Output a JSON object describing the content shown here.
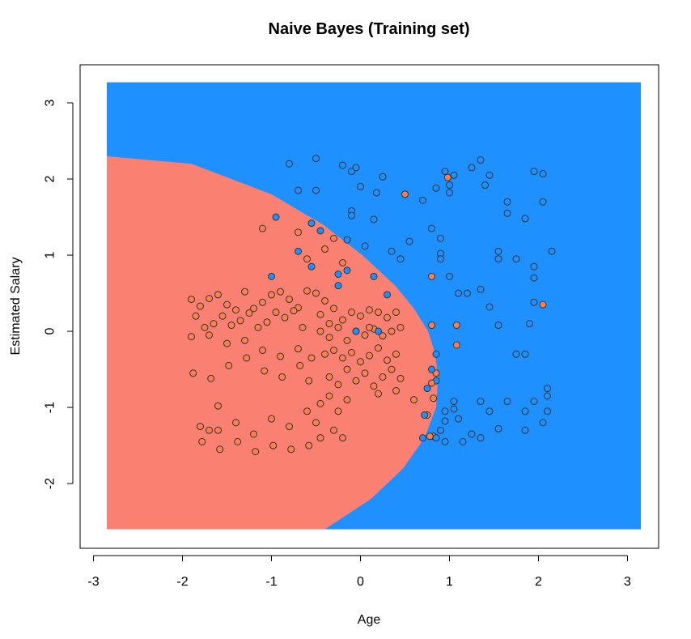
{
  "chart_data": {
    "type": "scatter",
    "title": "Naive Bayes (Training set)",
    "xlabel": "Age",
    "ylabel": "Estimated Salary",
    "xlim": [
      -3.15,
      3.35
    ],
    "ylim": [
      -2.85,
      3.5
    ],
    "grid_extent": {
      "x": [
        -2.85,
        3.15
      ],
      "y": [
        -2.6,
        3.27
      ]
    },
    "x_ticks": [
      -3,
      -2,
      -1,
      0,
      1,
      2,
      3
    ],
    "y_ticks": [
      -2,
      -1,
      0,
      1,
      2,
      3
    ],
    "grid": false,
    "legend": "none",
    "colors": {
      "region_0": "#FA8072",
      "region_1": "#1E90FF",
      "point_0": "#FF7F50",
      "point_1": "#1E90FF",
      "point_outline": "#333333"
    },
    "boundary": {
      "y": [
        -2.6,
        -2.2,
        -1.8,
        -1.4,
        -1.0,
        -0.6,
        -0.3,
        0.0,
        0.3,
        0.6,
        1.0,
        1.4,
        1.8,
        2.2,
        2.3
      ],
      "x": [
        -0.4,
        0.12,
        0.48,
        0.72,
        0.85,
        0.87,
        0.84,
        0.76,
        0.6,
        0.39,
        0.02,
        -0.42,
        -1.0,
        -1.9,
        -2.85
      ]
    },
    "series": [
      {
        "class": 0,
        "points": [
          [
            -1.9,
            0.42
          ],
          [
            -1.8,
            0.33
          ],
          [
            -1.7,
            0.43
          ],
          [
            -1.6,
            0.48
          ],
          [
            -1.5,
            0.35
          ],
          [
            -1.4,
            0.28
          ],
          [
            -1.3,
            0.52
          ],
          [
            -1.2,
            0.3
          ],
          [
            -1.1,
            0.38
          ],
          [
            -1.0,
            0.48
          ],
          [
            -0.9,
            0.52
          ],
          [
            -0.8,
            0.42
          ],
          [
            -0.7,
            0.31
          ],
          [
            -0.6,
            0.53
          ],
          [
            -1.85,
            0.2
          ],
          [
            -1.75,
            0.05
          ],
          [
            -1.65,
            0.1
          ],
          [
            -1.55,
            0.2
          ],
          [
            -1.45,
            0.08
          ],
          [
            -1.35,
            0.14
          ],
          [
            -1.25,
            0.24
          ],
          [
            -1.15,
            0.05
          ],
          [
            -1.05,
            0.12
          ],
          [
            -0.95,
            0.25
          ],
          [
            -0.85,
            0.18
          ],
          [
            -0.75,
            0.27
          ],
          [
            -0.65,
            0.05
          ],
          [
            -1.9,
            -0.07
          ],
          [
            -1.7,
            -0.05
          ],
          [
            -1.5,
            -0.16
          ],
          [
            -1.3,
            -0.12
          ],
          [
            -1.1,
            -0.25
          ],
          [
            -0.9,
            -0.33
          ],
          [
            -0.7,
            -0.23
          ],
          [
            -0.55,
            -0.35
          ],
          [
            -1.88,
            -0.55
          ],
          [
            -1.68,
            -0.62
          ],
          [
            -1.48,
            -0.45
          ],
          [
            -1.28,
            -0.35
          ],
          [
            -1.08,
            -0.52
          ],
          [
            -0.88,
            -0.6
          ],
          [
            -0.68,
            -0.45
          ],
          [
            -0.58,
            -0.65
          ],
          [
            -1.8,
            -1.25
          ],
          [
            -1.6,
            -1.3
          ],
          [
            -1.4,
            -1.2
          ],
          [
            -1.2,
            -1.35
          ],
          [
            -1.0,
            -1.15
          ],
          [
            -0.8,
            -1.25
          ],
          [
            -0.6,
            -1.05
          ],
          [
            -0.5,
            -1.2
          ],
          [
            -1.78,
            -1.45
          ],
          [
            -1.58,
            -1.55
          ],
          [
            -1.38,
            -1.45
          ],
          [
            -1.18,
            -1.58
          ],
          [
            -0.98,
            -1.5
          ],
          [
            -0.78,
            -1.55
          ],
          [
            -0.58,
            -1.5
          ],
          [
            -0.45,
            -1.4
          ],
          [
            -1.1,
            1.35
          ],
          [
            -0.7,
            1.3
          ],
          [
            -0.3,
            1.22
          ],
          [
            -0.4,
            1.08
          ],
          [
            -0.6,
            0.95
          ],
          [
            -0.2,
            0.9
          ],
          [
            -0.4,
            0.4
          ],
          [
            -0.3,
            0.3
          ],
          [
            -0.2,
            0.15
          ],
          [
            -0.1,
            0.25
          ],
          [
            0.0,
            0.2
          ],
          [
            0.1,
            0.28
          ],
          [
            0.2,
            0.25
          ],
          [
            0.3,
            0.18
          ],
          [
            0.4,
            0.25
          ],
          [
            -0.45,
            0.0
          ],
          [
            -0.35,
            -0.08
          ],
          [
            -0.25,
            0.05
          ],
          [
            -0.15,
            -0.12
          ],
          [
            -0.05,
            0.0
          ],
          [
            0.05,
            -0.05
          ],
          [
            0.15,
            0.03
          ],
          [
            0.25,
            -0.06
          ],
          [
            0.35,
            0.0
          ],
          [
            0.45,
            0.05
          ],
          [
            -0.4,
            -0.3
          ],
          [
            -0.3,
            -0.25
          ],
          [
            -0.2,
            -0.35
          ],
          [
            -0.1,
            -0.28
          ],
          [
            0.0,
            -0.4
          ],
          [
            0.1,
            -0.32
          ],
          [
            0.2,
            -0.22
          ],
          [
            0.3,
            -0.38
          ],
          [
            0.4,
            -0.3
          ],
          [
            -0.35,
            -0.6
          ],
          [
            -0.25,
            -0.7
          ],
          [
            -0.15,
            -0.5
          ],
          [
            -0.05,
            -0.65
          ],
          [
            0.05,
            -0.55
          ],
          [
            0.15,
            -0.72
          ],
          [
            0.25,
            -0.6
          ],
          [
            0.35,
            -0.5
          ],
          [
            0.45,
            -0.62
          ],
          [
            -0.45,
            -0.95
          ],
          [
            -0.35,
            -0.85
          ],
          [
            -0.25,
            -1.05
          ],
          [
            -0.15,
            -0.9
          ],
          [
            0.2,
            -0.82
          ],
          [
            0.4,
            -0.78
          ],
          [
            -0.3,
            -1.3
          ],
          [
            -0.2,
            -1.4
          ],
          [
            0.6,
            -0.9
          ],
          [
            0.75,
            -1.1
          ],
          [
            0.82,
            -1.38
          ],
          [
            0.82,
            -0.88
          ],
          [
            0.85,
            -0.55
          ],
          [
            -0.5,
            0.5
          ],
          [
            -0.45,
            0.22
          ],
          [
            -0.35,
            0.1
          ],
          [
            0.1,
            0.05
          ],
          [
            -1.6,
            -0.98
          ],
          [
            -1.7,
            -1.3
          ]
        ]
      },
      {
        "class": 1,
        "points": [
          [
            -0.8,
            2.2
          ],
          [
            -0.7,
            1.85
          ],
          [
            -0.5,
            1.85
          ],
          [
            -0.5,
            2.27
          ],
          [
            -0.2,
            2.18
          ],
          [
            -0.1,
            2.1
          ],
          [
            -0.05,
            2.15
          ],
          [
            0.0,
            1.9
          ],
          [
            0.25,
            2.03
          ],
          [
            0.18,
            1.82
          ],
          [
            0.5,
            1.8
          ],
          [
            0.7,
            1.72
          ],
          [
            0.85,
            1.88
          ],
          [
            -0.1,
            1.58
          ],
          [
            -0.1,
            1.52
          ],
          [
            0.15,
            1.47
          ],
          [
            -0.55,
            1.42
          ],
          [
            -0.45,
            1.32
          ],
          [
            -0.15,
            1.2
          ],
          [
            0.05,
            1.12
          ],
          [
            0.55,
            1.18
          ],
          [
            0.35,
            1.05
          ],
          [
            0.45,
            0.95
          ],
          [
            0.8,
            1.35
          ],
          [
            0.9,
            1.22
          ],
          [
            0.9,
            1.02
          ],
          [
            1.0,
            0.72
          ],
          [
            1.1,
            0.5
          ],
          [
            1.2,
            0.5
          ],
          [
            1.35,
            0.55
          ],
          [
            1.45,
            0.32
          ],
          [
            1.55,
            0.08
          ],
          [
            1.75,
            -0.3
          ],
          [
            1.85,
            -0.3
          ],
          [
            1.9,
            0.1
          ],
          [
            1.95,
            0.38
          ],
          [
            0.9,
            0.95
          ],
          [
            0.95,
            2.1
          ],
          [
            1.0,
            1.92
          ],
          [
            1.0,
            1.82
          ],
          [
            1.05,
            2.05
          ],
          [
            1.25,
            2.15
          ],
          [
            1.35,
            2.25
          ],
          [
            1.45,
            2.05
          ],
          [
            1.4,
            1.92
          ],
          [
            1.65,
            1.7
          ],
          [
            1.65,
            1.55
          ],
          [
            1.85,
            1.48
          ],
          [
            1.95,
            2.1
          ],
          [
            2.05,
            2.07
          ],
          [
            2.05,
            1.7
          ],
          [
            1.55,
            1.05
          ],
          [
            1.55,
            0.95
          ],
          [
            1.75,
            0.95
          ],
          [
            1.95,
            0.85
          ],
          [
            1.95,
            0.7
          ],
          [
            2.15,
            1.05
          ],
          [
            2.1,
            -0.75
          ],
          [
            2.1,
            -0.85
          ],
          [
            2.1,
            -1.05
          ],
          [
            2.05,
            -1.2
          ],
          [
            1.95,
            -0.92
          ],
          [
            1.85,
            -1.05
          ],
          [
            1.85,
            -1.3
          ],
          [
            1.65,
            -0.92
          ],
          [
            1.55,
            -1.28
          ],
          [
            1.45,
            -1.05
          ],
          [
            1.35,
            -0.92
          ],
          [
            1.35,
            -1.4
          ],
          [
            1.25,
            -1.35
          ],
          [
            1.15,
            -1.45
          ],
          [
            1.1,
            -1.15
          ],
          [
            1.05,
            -1.02
          ],
          [
            1.05,
            -0.92
          ],
          [
            0.95,
            -1.05
          ],
          [
            0.95,
            -1.45
          ],
          [
            0.95,
            -1.18
          ],
          [
            0.9,
            -1.3
          ],
          [
            0.85,
            -0.65
          ],
          [
            0.85,
            -1.4
          ],
          [
            0.85,
            -0.3
          ],
          [
            0.8,
            -0.5
          ],
          [
            0.75,
            -0.75
          ],
          [
            0.72,
            -1.1
          ],
          [
            0.7,
            -1.4
          ],
          [
            -0.95,
            1.5
          ],
          [
            -0.55,
            0.85
          ],
          [
            -0.25,
            0.6
          ],
          [
            -0.25,
            0.75
          ],
          [
            -0.15,
            0.8
          ],
          [
            0.15,
            0.72
          ],
          [
            0.3,
            0.48
          ],
          [
            -0.05,
            0.0
          ],
          [
            0.2,
            0.0
          ],
          [
            -1.0,
            0.72
          ],
          [
            -0.7,
            1.05
          ]
        ]
      },
      {
        "class": 0,
        "points": [
          [
            0.5,
            1.8
          ],
          [
            0.98,
            2.02
          ],
          [
            0.8,
            0.72
          ],
          [
            0.8,
            0.08
          ],
          [
            1.08,
            0.08
          ],
          [
            1.08,
            -0.18
          ],
          [
            2.05,
            0.35
          ],
          [
            0.78,
            -1.38
          ],
          [
            0.8,
            -0.68
          ]
        ]
      }
    ]
  }
}
